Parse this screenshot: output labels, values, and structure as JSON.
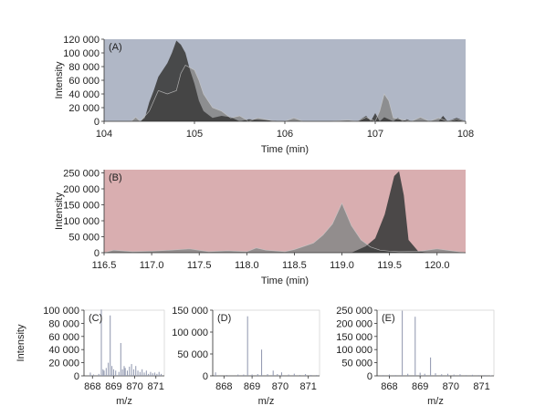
{
  "colors": {
    "panel_a_bg": "#b0b7c6",
    "panel_b_bg": "#d9aeb0",
    "trace_dark": "#3f3f3f",
    "trace_light": "#8a8a8a",
    "spectrum_line": "#8e95ad"
  },
  "chart_data": [
    {
      "type": "area",
      "panel_label": "(A)",
      "xlabel": "Time (min)",
      "ylabel": "Intensity",
      "xlim": [
        104,
        108
      ],
      "ylim": [
        0,
        120000
      ],
      "xticks": [
        104,
        105,
        106,
        107,
        108
      ],
      "yticks": [
        0,
        20000,
        40000,
        60000,
        80000,
        100000,
        120000
      ],
      "xtick_labels": [
        "104",
        "105",
        "106",
        "107",
        "108"
      ],
      "ytick_labels": [
        "0",
        "20 000",
        "40 000",
        "60 000",
        "80 000",
        "100 000",
        "120 000"
      ],
      "series": [
        {
          "color": "#8a8a8a",
          "x": [
            104.0,
            104.3,
            104.35,
            104.4,
            104.5,
            104.6,
            104.7,
            104.8,
            104.85,
            104.9,
            105.0,
            105.05,
            105.1,
            105.2,
            105.3,
            105.35,
            105.4,
            105.5,
            105.6,
            105.7,
            105.9,
            106.0,
            106.1,
            106.2,
            106.3,
            106.5,
            106.7,
            106.8,
            106.9,
            107.0,
            107.05,
            107.1,
            107.15,
            107.2,
            107.4,
            107.5,
            107.6,
            107.7,
            107.8,
            107.9,
            108.0
          ],
          "y": [
            0,
            0,
            6000,
            0,
            15000,
            45000,
            40000,
            45000,
            70000,
            82000,
            75000,
            60000,
            40000,
            20000,
            15000,
            10000,
            5000,
            8000,
            0,
            5000,
            0,
            0,
            5000,
            0,
            0,
            0,
            2000,
            0,
            6000,
            0,
            15000,
            40000,
            30000,
            5000,
            0,
            6000,
            0,
            5000,
            0,
            3000,
            0
          ]
        },
        {
          "color": "#3f3f3f",
          "x": [
            104.0,
            104.4,
            104.45,
            104.5,
            104.55,
            104.6,
            104.7,
            104.75,
            104.8,
            104.85,
            104.9,
            104.95,
            105.0,
            105.05,
            105.1,
            105.2,
            105.3,
            105.4,
            105.5,
            105.6,
            106.0,
            106.3,
            106.5,
            106.6,
            106.7,
            106.8,
            106.9,
            106.95,
            107.0,
            107.05,
            107.1,
            107.2,
            107.25,
            107.3,
            107.35,
            107.4,
            107.5,
            107.6,
            107.7,
            107.75,
            107.8,
            107.9,
            108.0
          ],
          "y": [
            0,
            0,
            5000,
            28000,
            45000,
            65000,
            85000,
            100000,
            118000,
            112000,
            100000,
            75000,
            55000,
            30000,
            15000,
            5000,
            8000,
            6000,
            0,
            3000,
            0,
            0,
            0,
            0,
            0,
            0,
            8000,
            0,
            12000,
            0,
            6000,
            0,
            5000,
            0,
            3000,
            0,
            0,
            0,
            0,
            8000,
            0,
            5000,
            0
          ]
        }
      ]
    },
    {
      "type": "area",
      "panel_label": "(B)",
      "xlabel": "Time (min)",
      "ylabel": "Intensity",
      "xlim": [
        116.5,
        120.3
      ],
      "ylim": [
        0,
        260000
      ],
      "xticks": [
        116.5,
        117.0,
        117.5,
        118.0,
        118.5,
        119.0,
        119.5,
        120.0
      ],
      "yticks": [
        0,
        50000,
        100000,
        150000,
        200000,
        250000
      ],
      "xtick_labels": [
        "116.5",
        "117.0",
        "117.5",
        "118.0",
        "118.5",
        "119.0",
        "119.5",
        "120.0"
      ],
      "ytick_labels": [
        "0",
        "50 000",
        "100 000",
        "150 000",
        "200 000",
        "250 000"
      ],
      "series": [
        {
          "color": "#8a8a8a",
          "x": [
            116.5,
            116.6,
            116.8,
            117.0,
            117.2,
            117.4,
            117.6,
            117.8,
            118.0,
            118.1,
            118.2,
            118.4,
            118.5,
            118.6,
            118.7,
            118.8,
            118.9,
            119.0,
            119.1,
            119.2,
            119.3,
            119.4,
            119.5,
            119.6,
            119.8,
            120.0,
            120.1,
            120.3
          ],
          "y": [
            0,
            8000,
            3000,
            5000,
            8000,
            12000,
            3000,
            6000,
            3000,
            15000,
            8000,
            3000,
            10000,
            20000,
            30000,
            55000,
            90000,
            155000,
            85000,
            40000,
            18000,
            8000,
            5000,
            3000,
            4000,
            12000,
            8000,
            0
          ]
        },
        {
          "color": "#3f3f3f",
          "x": [
            116.5,
            119.1,
            119.25,
            119.35,
            119.45,
            119.55,
            119.6,
            119.65,
            119.7,
            119.8,
            119.9,
            120.0,
            120.3
          ],
          "y": [
            0,
            0,
            20000,
            45000,
            120000,
            240000,
            255000,
            180000,
            40000,
            5000,
            0,
            0,
            0
          ]
        }
      ]
    },
    {
      "type": "bar",
      "panel_label": "(C)",
      "xlabel": "m/z",
      "ylabel": "Intensity",
      "xlim": [
        867.6,
        871.4
      ],
      "ylim": [
        0,
        100000
      ],
      "xticks": [
        868,
        869,
        870,
        871
      ],
      "yticks": [
        0,
        20000,
        40000,
        60000,
        80000,
        100000
      ],
      "xtick_labels": [
        "868",
        "869",
        "870",
        "871"
      ],
      "ytick_labels": [
        "0",
        "20 000",
        "40 000",
        "60 000",
        "80 000",
        "100 000"
      ],
      "x": [
        867.9,
        868.05,
        868.3,
        868.42,
        868.5,
        868.55,
        868.65,
        868.75,
        868.84,
        868.92,
        869.0,
        869.1,
        869.25,
        869.34,
        869.42,
        869.5,
        869.55,
        869.65,
        869.75,
        869.85,
        869.95,
        870.05,
        870.15,
        870.25,
        870.35,
        870.45,
        870.55,
        870.65,
        870.75,
        870.85,
        870.95,
        871.05,
        871.15,
        871.25
      ],
      "y": [
        5000,
        2000,
        3000,
        101000,
        10000,
        8000,
        12000,
        20000,
        92000,
        15000,
        10000,
        8000,
        6000,
        50000,
        10000,
        15000,
        12000,
        8000,
        14000,
        18000,
        10000,
        15000,
        8000,
        6000,
        10000,
        5000,
        8000,
        3000,
        6000,
        4000,
        5000,
        3000,
        6000,
        3000
      ]
    },
    {
      "type": "bar",
      "panel_label": "(D)",
      "xlabel": "m/z",
      "xlim": [
        867.6,
        871.4
      ],
      "ylim": [
        0,
        150000
      ],
      "xticks": [
        868,
        869,
        870,
        871
      ],
      "yticks": [
        0,
        50000,
        100000,
        150000
      ],
      "xtick_labels": [
        "868",
        "869",
        "870",
        "871"
      ],
      "ytick_labels": [
        "0",
        "50 000",
        "100 000",
        "150 000"
      ],
      "x": [
        867.7,
        868.1,
        868.5,
        868.7,
        868.84,
        869.0,
        869.2,
        869.34,
        869.55,
        869.75,
        869.9,
        870.05,
        870.3,
        870.5,
        870.7,
        870.9,
        871.1,
        871.3
      ],
      "y": [
        8000,
        2000,
        3000,
        3000,
        136000,
        3000,
        4000,
        60000,
        4000,
        12000,
        4000,
        8000,
        3000,
        5000,
        2000,
        4000,
        2000,
        2000
      ]
    },
    {
      "type": "bar",
      "panel_label": "(E)",
      "xlabel": "m/z",
      "xlim": [
        867.6,
        871.4
      ],
      "ylim": [
        0,
        250000
      ],
      "xticks": [
        868,
        869,
        870,
        871
      ],
      "yticks": [
        0,
        50000,
        100000,
        150000,
        200000,
        250000
      ],
      "xtick_labels": [
        "868",
        "869",
        "870",
        "871"
      ],
      "ytick_labels": [
        "0",
        "50 000",
        "100 000",
        "150 000",
        "200 000",
        "250 000"
      ],
      "x": [
        867.8,
        868.0,
        868.2,
        868.42,
        868.6,
        868.84,
        869.0,
        869.15,
        869.34,
        869.5,
        869.7,
        869.9,
        870.1,
        870.3,
        870.5,
        870.7,
        870.9,
        871.1,
        871.3
      ],
      "y": [
        3000,
        5000,
        3000,
        248000,
        8000,
        225000,
        12000,
        8000,
        70000,
        10000,
        6000,
        8000,
        5000,
        6000,
        3000,
        4000,
        3000,
        3000,
        2000
      ]
    }
  ]
}
